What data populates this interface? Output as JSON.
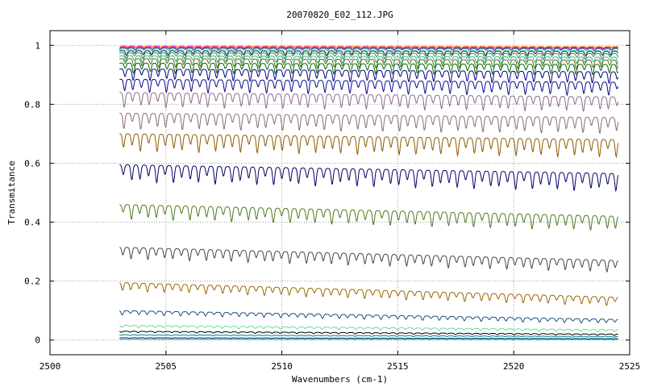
{
  "chart_data": {
    "type": "line",
    "title": "20070820_E02_112.JPG",
    "xlabel": "Wavenumbers (cm-1)",
    "ylabel": "Transmitance",
    "xlim": [
      2500,
      2525
    ],
    "ylim": [
      -0.05,
      1.05
    ],
    "grid": true,
    "x_ticks": [
      2500,
      2505,
      2510,
      2515,
      2520,
      2525
    ],
    "y_ticks": [
      0,
      0.2,
      0.4,
      0.6,
      0.8,
      1
    ],
    "x_tick_labels": [
      "2500",
      "2505",
      "2510",
      "2515",
      "2520",
      "2525"
    ],
    "y_tick_labels": [
      "0",
      "0.2",
      "0.4",
      "0.6",
      "0.8",
      "1"
    ],
    "x_range_data": [
      2503,
      2524.5
    ],
    "line_spacing_cm1": 0.36,
    "series": [
      {
        "color": "#ffa500",
        "start": 0.999,
        "end": 0.996,
        "depth": 0.004
      },
      {
        "color": "#ff00ff",
        "start": 0.996,
        "end": 0.994,
        "depth": 0.006
      },
      {
        "color": "#8b008b",
        "start": 0.993,
        "end": 0.991,
        "depth": 0.008
      },
      {
        "color": "#20b2aa",
        "start": 0.99,
        "end": 0.988,
        "depth": 0.01
      },
      {
        "color": "#7fff7f",
        "start": 0.985,
        "end": 0.983,
        "depth": 0.014
      },
      {
        "color": "#191970",
        "start": 0.982,
        "end": 0.98,
        "depth": 0.016
      },
      {
        "color": "#2e8b57",
        "start": 0.975,
        "end": 0.972,
        "depth": 0.02
      },
      {
        "color": "#3cb371",
        "start": 0.965,
        "end": 0.96,
        "depth": 0.025
      },
      {
        "color": "#556b2f",
        "start": 0.955,
        "end": 0.95,
        "depth": 0.03
      },
      {
        "color": "#006400",
        "start": 0.94,
        "end": 0.935,
        "depth": 0.035
      },
      {
        "color": "#000080",
        "start": 0.92,
        "end": 0.91,
        "depth": 0.04
      },
      {
        "color": "#0a0a8a",
        "start": 0.885,
        "end": 0.875,
        "depth": 0.045
      },
      {
        "color": "#8b6b8b",
        "start": 0.84,
        "end": 0.825,
        "depth": 0.05
      },
      {
        "color": "#8b6b6b",
        "start": 0.77,
        "end": 0.755,
        "depth": 0.055
      },
      {
        "color": "#8b5a00",
        "start": 0.7,
        "end": 0.68,
        "depth": 0.06
      },
      {
        "color": "#000066",
        "start": 0.595,
        "end": 0.565,
        "depth": 0.06
      },
      {
        "color": "#4a7a1a",
        "start": 0.46,
        "end": 0.42,
        "depth": 0.05
      },
      {
        "color": "#444444",
        "start": 0.315,
        "end": 0.27,
        "depth": 0.04
      },
      {
        "color": "#996600",
        "start": 0.195,
        "end": 0.145,
        "depth": 0.03
      },
      {
        "color": "#1a4a7a",
        "start": 0.1,
        "end": 0.07,
        "depth": 0.015
      },
      {
        "color": "#66dd99",
        "start": 0.05,
        "end": 0.035,
        "depth": 0.008
      },
      {
        "color": "#000000",
        "start": 0.03,
        "end": 0.02,
        "depth": 0.005
      },
      {
        "color": "#008080",
        "start": 0.018,
        "end": 0.012,
        "depth": 0.003
      },
      {
        "color": "#003366",
        "start": 0.008,
        "end": 0.005,
        "depth": 0.002
      },
      {
        "color": "#00aacc",
        "start": 0.003,
        "end": 0.002,
        "depth": 0.001
      }
    ]
  }
}
